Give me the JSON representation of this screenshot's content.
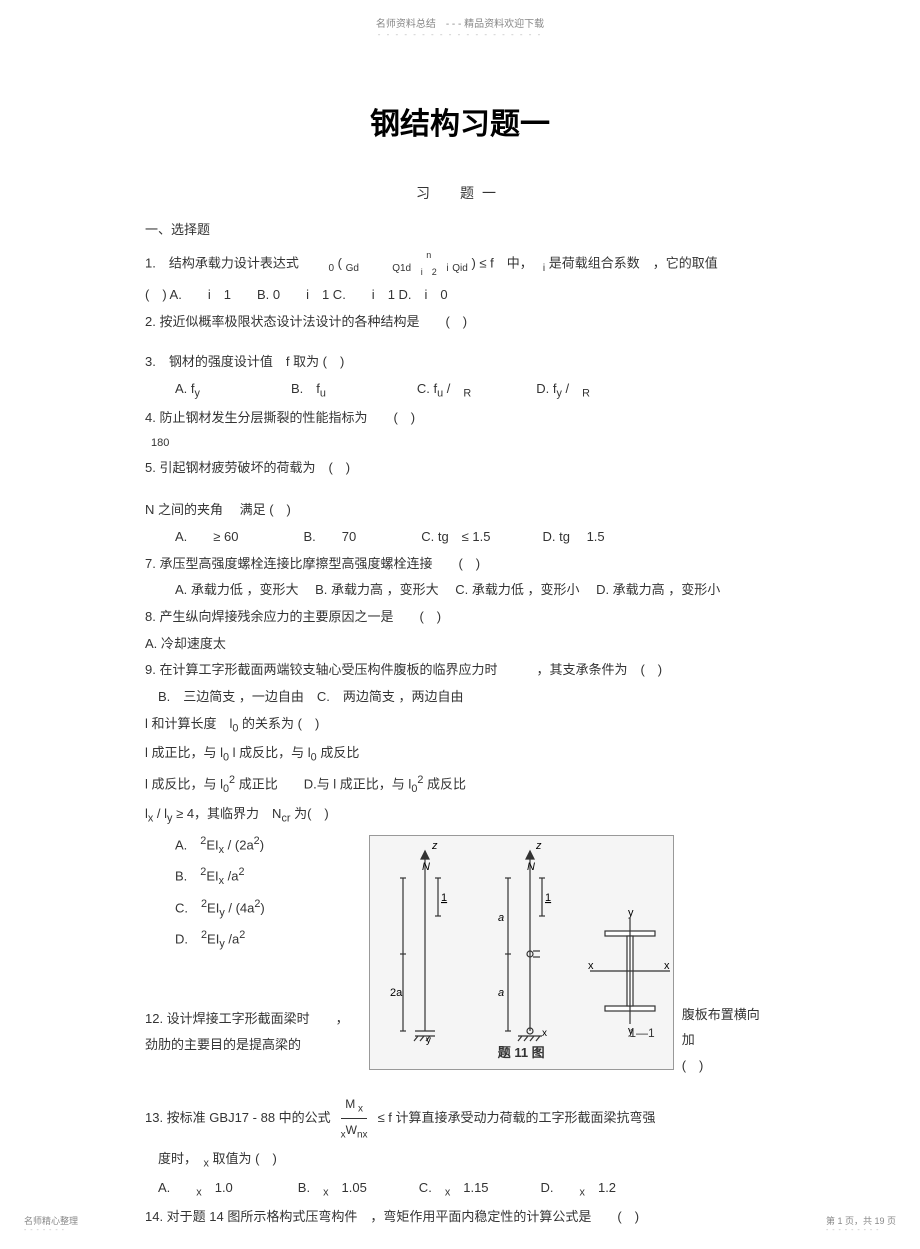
{
  "header": {
    "top": "名师资料总结　- - - 精品资料欢迎下载",
    "dots": "- - - - - - - - - - - - - - - - - - -"
  },
  "title": "钢结构习题一",
  "subTitle": "习　题一",
  "section1": "一、选择题",
  "q1": {
    "line1_a": "1.　结构承载力设计表达式　　",
    "line1_b": "( ",
    "sub0": "0",
    "gd": "Gd",
    "q1d": "Q1d",
    "sum_n": "n",
    "sum_i": "i　2",
    "qid": "Qid",
    "line1_c": " ) ≤ f　中，　",
    "sub_i": "i",
    "line1_d": " 是荷载组合系数　，它的取值",
    "opts": "(　) A.　　i　1　　B. 0　　i　1 C.　　i　1 D.　i　0"
  },
  "q2": "2. 按近似概率极限状态设计法设计的各种结构是　　(　)",
  "q3": {
    "line": "3.　钢材的强度设计值　f 取为 (　)",
    "opts": "A.  f<sub>y</sub>　　　　　　　B.　f<sub>u</sub>　　　　　　　C. f<sub>u</sub> /　<sub>R</sub>　　　　　D. f<sub>y</sub> /　<sub>R</sub>"
  },
  "q4": {
    "line": "4. 防止钢材发生分层撕裂的性能指标为　　(　)",
    "sub": "180"
  },
  "q5": "5. 引起钢材疲劳破坏的荷载为　(　)",
  "q6": {
    "line": "N 之间的夹角　 满足 (　)",
    "opts": "A.　　≥ 60　　　　　B.　　70　　　　　C. tg　≤ 1.5　　　　D. tg　 1.5"
  },
  "q7": {
    "line": "7. 承压型高强度螺栓连接比摩擦型高强度螺栓连接　　(　)",
    "opts": "A. 承载力低 ，变形大　 B. 承载力高 ，变形大　 C. 承载力低 ，变形小　 D. 承载力高 ，变形小"
  },
  "q8": {
    "line": "8. 产生纵向焊接残余应力的主要原因之一是　　(　)",
    "optA": "A. 冷却速度太"
  },
  "q9": {
    "line": "9. 在计算工字形截面两端铰支轴心受压构件腹板的临界应力时　　　，其支承条件为　(　)",
    "opts": "　B.　三边简支 ，一边自由　C.　两边简支 ，两边自由"
  },
  "q10": {
    "line1": "l  和计算长度　l<sub>0</sub> 的关系为 (　)",
    "line2": "l  成正比，与 l<sub>0</sub> l  成反比，与 l<sub>0</sub> 成反比",
    "line3": "l  成反比，与 l<sub>0</sub><sup>2</sup> 成正比　　D.与 l  成正比，与 l<sub>0</sub><sup>2</sup> 成反比"
  },
  "q11": {
    "line": "l<sub>x</sub> / l<sub>y</sub> ≥ 4，其临界力　N<sub>cr</sub> 为(　)",
    "optA": "A.　<sup>2</sup>EI<sub>x</sub> / (2a<sup>2</sup>)",
    "optB": "B.　<sup>2</sup>EI<sub>x</sub> /a<sup>2</sup>",
    "optC": "C.　<sup>2</sup>EI<sub>y</sub> / (4a<sup>2</sup>)",
    "optD": "D.　<sup>2</sup>EI<sub>y</sub> /a<sup>2</sup>",
    "caption": "题 11 图",
    "sect": "1—1"
  },
  "q12": {
    "left": "12. 设计焊接工字形截面梁时　　，",
    "right": "腹板布置横向加",
    "line2_left": "劲肋的主要目的是提高梁的",
    "line2_right": "(　)"
  },
  "q13": {
    "line_a": "13. 按标准  GBJ17 -  88 中的公式",
    "frac_num": "M<sub> x</sub>",
    "frac_den": "<sub>x</sub>W<sub>nx</sub>",
    "line_b": " ≤ f  计算直接承受动力荷载的工字形截面梁抗弯强",
    "line2": "　度时，　<sub>x</sub> 取值为 (　)",
    "opts": "　A.　　<sub>x</sub>　1.0　　　　　B.　<sub>x</sub>　1.05　　　　C.　<sub>x</sub>　1.15　　　　D.　　<sub>x</sub>　1.2"
  },
  "q14": "14. 对于题  14 图所示格构式压弯构件　，弯矩作用平面内稳定性的计算公式是　　(　)",
  "footer": {
    "left": "名师精心整理",
    "dots": "- - - - - - -",
    "right": "第 1 页，共 19 页",
    "dots2": "- - - - - - - - -"
  },
  "colors": {
    "text": "#333333",
    "light": "#888888",
    "bg": "#ffffff"
  }
}
